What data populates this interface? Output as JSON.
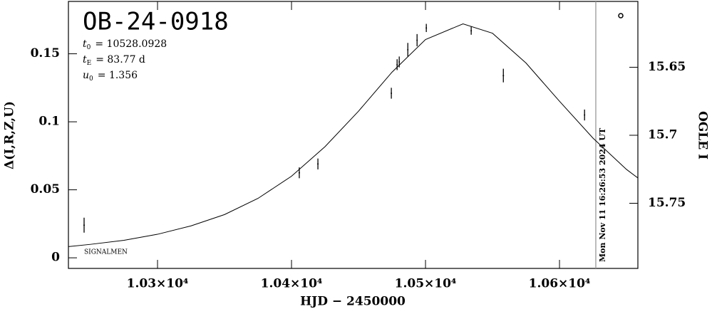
{
  "chart_data": {
    "type": "lightcurve",
    "title": "OB-24-0918",
    "parameters": [
      {
        "symbol": "t",
        "sub": "0",
        "text": "= 10528.0928"
      },
      {
        "symbol": "t",
        "sub": "E",
        "text": "= 83.77 d"
      },
      {
        "symbol": "u",
        "sub": "0",
        "text": "= 1.356"
      }
    ],
    "note": "SIGNALMEN",
    "xlabel": "HJD − 2450000",
    "ylabel": "Δ(I,R,Z,U)",
    "y2label": "OGLE I",
    "xlim": [
      10233.5,
      10658.5
    ],
    "xticks": [
      {
        "value": 10300,
        "label": "1.03×10⁴"
      },
      {
        "value": 10400,
        "label": "1.04×10⁴"
      },
      {
        "value": 10500,
        "label": "1.05×10⁴"
      },
      {
        "value": 10600,
        "label": "1.06×10⁴"
      }
    ],
    "ylim": [
      -0.0078,
      0.1885
    ],
    "yticks": [
      0,
      0.05,
      0.1,
      0.15
    ],
    "y2lim": [
      15.6016,
      15.7979
    ],
    "y2ticks": [
      15.65,
      15.7,
      15.75
    ],
    "series": [
      {
        "color": "#000000",
        "x": [
          10245.2,
          10405.8,
          10419.7,
          10474.5,
          10478.8,
          10480.4,
          10486.8,
          10493.7,
          10500.6,
          10534.1,
          10558.1,
          10618.7
        ],
        "values": [
          0.024,
          0.0625,
          0.069,
          0.121,
          0.142,
          0.144,
          0.153,
          0.16,
          0.169,
          0.167,
          0.134,
          0.105
        ],
        "errors": [
          0.0055,
          0.004,
          0.004,
          0.004,
          0.004,
          0.004,
          0.005,
          0.0045,
          0.003,
          0.003,
          0.005,
          0.004
        ]
      }
    ],
    "model": {
      "color": "#000000",
      "x": [
        10233.5,
        10250,
        10275,
        10300,
        10325,
        10350,
        10375,
        10400,
        10425,
        10450,
        10475,
        10500,
        10528,
        10550,
        10575,
        10600,
        10625,
        10650,
        10658.5
      ],
      "values": [
        0.0082,
        0.0099,
        0.0129,
        0.0173,
        0.0235,
        0.0318,
        0.0437,
        0.06,
        0.0817,
        0.1078,
        0.1365,
        0.1605,
        0.172,
        0.1651,
        0.1432,
        0.1151,
        0.088,
        0.065,
        0.0587
      ]
    },
    "marker_line": {
      "x": 10627.1,
      "color": "#999999",
      "label": "Mon Nov 11 16:26:53 2024 UT"
    }
  }
}
